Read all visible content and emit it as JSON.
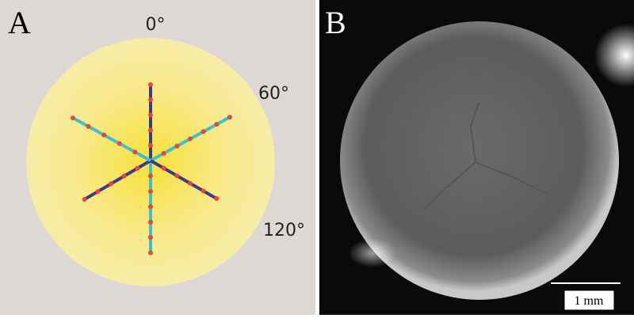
{
  "panel_a": {
    "label": "A",
    "angles": [
      "0°",
      "60°",
      "120°"
    ]
  },
  "panel_b": {
    "label": "B",
    "scale_bar": "1 mm"
  }
}
